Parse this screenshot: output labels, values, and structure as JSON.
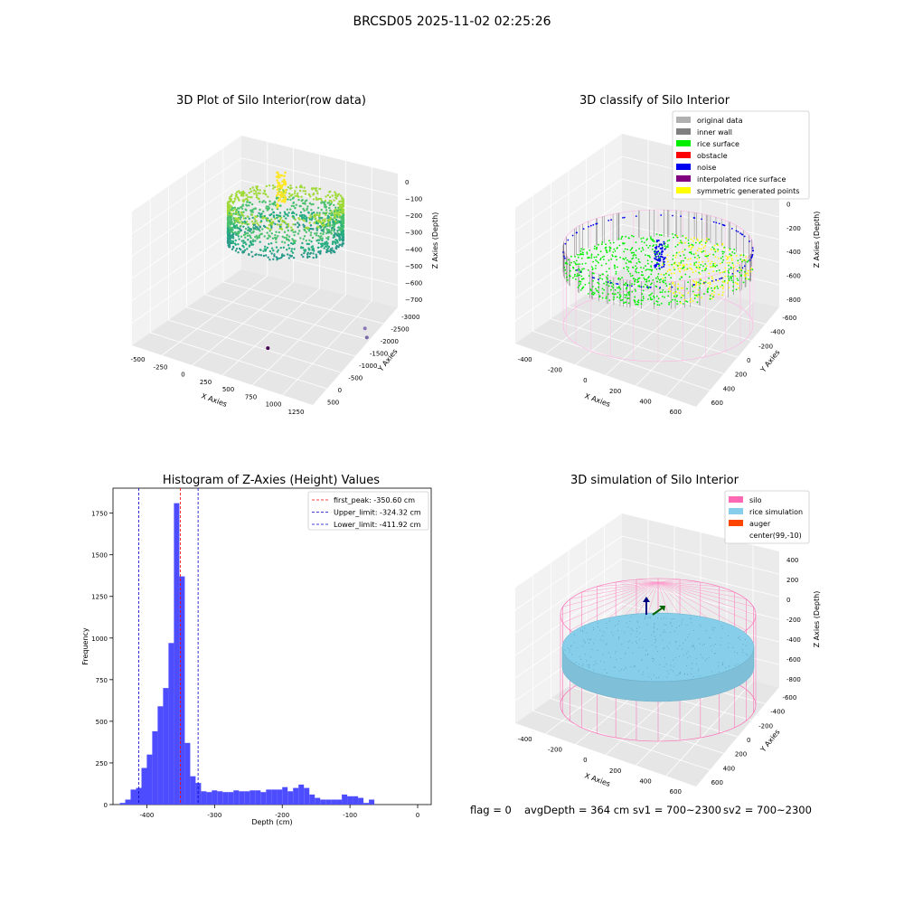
{
  "suptitle": "BRCSD05 2025-11-02 02:25:26",
  "footer": {
    "flag": "flag = 0",
    "avg_depth": "avgDepth = 364 cm",
    "sv1": "sv1 = 700~2300",
    "sv2": "sv2 = 700~2300"
  },
  "chart_data": [
    {
      "type": "scatter",
      "dimension": "3d",
      "title": "3D Plot of Silo Interior(row data)",
      "xlabel": "X Axies",
      "ylabel": "Y Axies",
      "zlabel": "Z Axies (Depth)",
      "x_ticks": [
        "-500",
        "-250",
        "0",
        "250",
        "500",
        "750",
        "1000",
        "1250"
      ],
      "y_ticks": [
        "500",
        "0",
        "-500",
        "-1000",
        "-1500",
        "-2000",
        "-2500",
        "-3000"
      ],
      "z_ticks": [
        "0",
        "−100",
        "−200",
        "−300",
        "−400",
        "−500",
        "−600",
        "−700"
      ],
      "colormap": "viridis",
      "outlier_points": [
        {
          "x": 1150,
          "y": -1100,
          "z": -700
        },
        {
          "x": 1250,
          "y": -1400,
          "z": -750
        },
        {
          "x": 700,
          "y": -2900,
          "z": -800
        }
      ]
    },
    {
      "type": "scatter",
      "dimension": "3d",
      "title": "3D classify of Silo Interior",
      "xlabel": "X Axies",
      "ylabel": "Y Axies",
      "zlabel": "Z Axies (Depth)",
      "x_ticks": [
        "-400",
        "-200",
        "0",
        "200",
        "400",
        "600"
      ],
      "y_ticks": [
        "600",
        "400",
        "200",
        "0",
        "-200",
        "-400",
        "-600"
      ],
      "z_ticks": [
        "200",
        "0",
        "-200",
        "-400",
        "-600",
        "-800"
      ],
      "legend": [
        {
          "label": "original data",
          "color": "#b0b0b0"
        },
        {
          "label": "inner wall",
          "color": "#808080"
        },
        {
          "label": "rice surface",
          "color": "#00ee00"
        },
        {
          "label": "obstacle",
          "color": "#ff0000"
        },
        {
          "label": "noise",
          "color": "#0000ee"
        },
        {
          "label": "interpolated rice surface",
          "color": "#800080"
        },
        {
          "label": "symmetric generated points",
          "color": "#ffff00"
        }
      ],
      "legend_loc": "upper right"
    },
    {
      "type": "bar",
      "title": "Histogram of Z-Axies (Height) Values",
      "xlabel": "Depth (cm)",
      "ylabel": "Frequency",
      "xlim": [
        -450,
        20
      ],
      "ylim": [
        0,
        1900
      ],
      "x_ticks": [
        -400,
        -300,
        -200,
        -100,
        0
      ],
      "y_ticks": [
        0,
        250,
        500,
        750,
        1000,
        1250,
        1500,
        1750
      ],
      "bar_color": "#4d4dff",
      "bin_start": -440,
      "bin_width": 8,
      "values": [
        10,
        30,
        90,
        100,
        220,
        300,
        440,
        590,
        700,
        970,
        1810,
        1370,
        370,
        170,
        130,
        80,
        75,
        85,
        80,
        75,
        75,
        85,
        80,
        80,
        85,
        85,
        75,
        90,
        90,
        90,
        105,
        80,
        100,
        120,
        100,
        60,
        40,
        30,
        30,
        30,
        30,
        60,
        50,
        50,
        40,
        10,
        30
      ],
      "vlines": [
        {
          "x": -350.6,
          "label": "first_peak: -350.60 cm",
          "color": "#ff0000"
        },
        {
          "x": -324.32,
          "label": "Upper_limit: -324.32 cm",
          "color": "#0000cc"
        },
        {
          "x": -411.92,
          "label": "Lower_limit: -411.92 cm",
          "color": "#0000cc"
        }
      ],
      "legend_loc": "upper right"
    },
    {
      "type": "scatter",
      "dimension": "3d",
      "title": "3D simulation of Silo Interior",
      "xlabel": "X Axies",
      "ylabel": "Y Axies",
      "zlabel": "Z Axies (Depth)",
      "x_ticks": [
        "-400",
        "-200",
        "0",
        "200",
        "400",
        "600"
      ],
      "y_ticks": [
        "600",
        "400",
        "200",
        "0",
        "-200",
        "-400",
        "-600"
      ],
      "z_ticks": [
        "400",
        "200",
        "0",
        "-200",
        "-400",
        "-600",
        "-800"
      ],
      "legend": [
        {
          "label": "silo",
          "color": "#ff69b4"
        },
        {
          "label": "rice simulation",
          "color": "#87ceeb"
        },
        {
          "label": "auger",
          "color": "#ff4500"
        },
        {
          "label": "center(99,-10)",
          "color": "#ffffff"
        }
      ],
      "legend_loc": "upper right"
    }
  ]
}
